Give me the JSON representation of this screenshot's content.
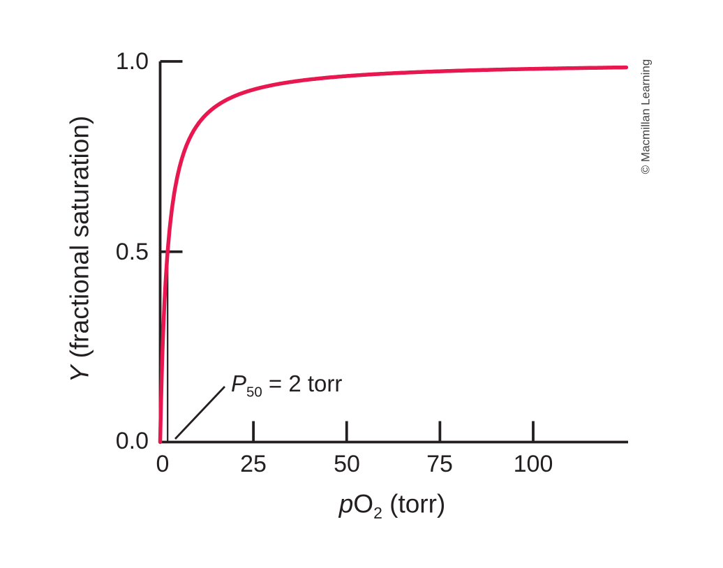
{
  "credit": "© Macmillan Learning",
  "colors": {
    "background": "#ffffff",
    "ink": "#231f20",
    "curve": "#e8174f",
    "credit_text": "#414042"
  },
  "chart_data": {
    "type": "line",
    "xlabel": "pO2 (torr)",
    "ylabel": "Y (fractional saturation)",
    "xlabel_parts": {
      "p_italic": "p",
      "O": "O",
      "sub": "2",
      "unit": " (torr)"
    },
    "ylabel_parts": {
      "Y_italic": "Y",
      "rest": " (fractional saturation)"
    },
    "xlim": [
      0,
      125
    ],
    "ylim": [
      0,
      1.0
    ],
    "x_ticks": [
      0,
      25,
      50,
      75,
      100
    ],
    "x_tick_labels": [
      "0",
      "25",
      "50",
      "75",
      "100"
    ],
    "y_ticks": [
      0,
      0.5,
      1.0
    ],
    "y_tick_labels": [
      "0.0",
      "0.5",
      "1.0"
    ],
    "grid": false,
    "legend": "none",
    "series": [
      {
        "name": "fractional saturation curve",
        "color": "#e8174f",
        "model": "Y = pO2 / (P50 + pO2)",
        "p50_torr": 2,
        "points": [
          [
            0,
            0
          ],
          [
            0.5,
            0.2
          ],
          [
            1,
            0.333
          ],
          [
            2,
            0.5
          ],
          [
            3,
            0.6
          ],
          [
            5,
            0.714
          ],
          [
            10,
            0.833
          ],
          [
            15,
            0.882
          ],
          [
            20,
            0.909
          ],
          [
            25,
            0.926
          ],
          [
            30,
            0.938
          ],
          [
            40,
            0.952
          ],
          [
            50,
            0.962
          ],
          [
            60,
            0.968
          ],
          [
            75,
            0.974
          ],
          [
            100,
            0.98
          ],
          [
            125,
            0.984
          ]
        ]
      }
    ],
    "annotation": {
      "text": "P50 = 2 torr",
      "parts": {
        "P_italic": "P",
        "sub": "50",
        "rest": " = 2 torr"
      },
      "points_to": {
        "x": 2,
        "y": 0
      }
    },
    "marker_line": {
      "x": 2,
      "from_y": 0,
      "to_y": 0.5
    }
  }
}
